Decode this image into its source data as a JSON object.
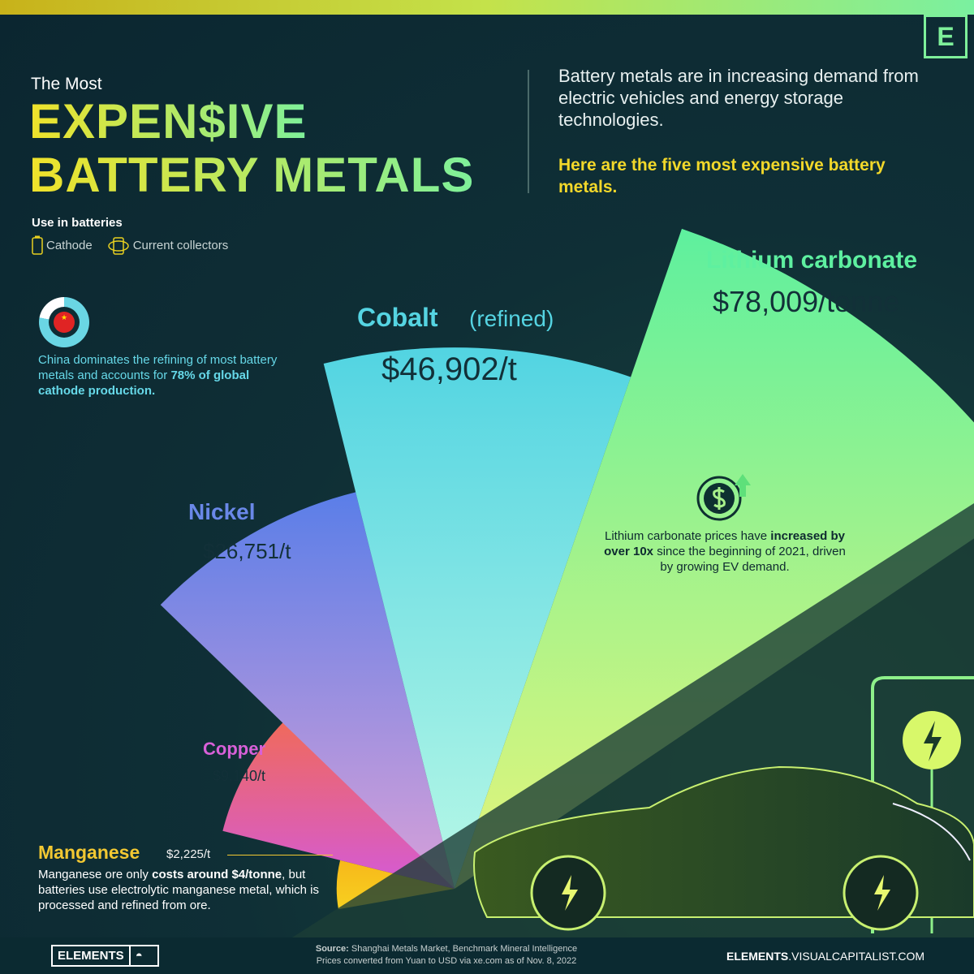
{
  "header": {
    "kicker": "The Most",
    "title_line1": "EXPEN$IVE",
    "title_line2": "BATTERY METALS",
    "logo": "E"
  },
  "intro": {
    "text": "Battery metals are in increasing demand from electric vehicles and energy storage technologies.",
    "highlight": "Here are the five most expensive battery metals."
  },
  "legend": {
    "title": "Use in batteries",
    "items": [
      {
        "label": "Cathode",
        "icon": "battery-icon"
      },
      {
        "label": "Current collectors",
        "icon": "battery-cycle-icon"
      }
    ]
  },
  "china": {
    "text": "China dominates the refining of most battery metals and accounts for",
    "bold": "78% of global cathode production.",
    "share_percent": 78
  },
  "lithium_note": {
    "pre": "Lithium carbonate prices have",
    "bold1": "increased by over 10x",
    "post": "since the beginning of 2021, driven by growing EV demand."
  },
  "manganese_note": {
    "title": "Manganese",
    "value": "$2,225/t",
    "pre": "Manganese ore only",
    "bold": "costs around $4/tonne",
    "post": ", but batteries use electrolytic manganese metal, which is processed and refined from ore."
  },
  "chart_data": {
    "type": "pie",
    "unit": "USD per tonne",
    "categories": [
      "Manganese",
      "Copper",
      "Nickel",
      "Cobalt (refined)",
      "Lithium carbonate"
    ],
    "values": [
      2225,
      9140,
      26751,
      46902,
      78009
    ],
    "labels": [
      "$2,225/t",
      "$9,140/t",
      "$26,751/t",
      "$46,902/t",
      "$78,009/tonne"
    ],
    "names": [
      "Manganese",
      "Copper",
      "Nickel",
      "Cobalt",
      "Lithium carbonate"
    ],
    "suffix": [
      "",
      "",
      "",
      "(refined)",
      ""
    ],
    "use": [
      "Current collectors",
      "Current collectors",
      "Cathode",
      "Cathode",
      "Cathode"
    ],
    "colors": [
      [
        "#f7b81a",
        "#f7d020"
      ],
      [
        "#f06a5a",
        "#d45ad8"
      ],
      [
        "#5a7ee8",
        "#d8a0d8"
      ],
      [
        "#52d4e2",
        "#b8f8e6"
      ],
      [
        "#5ef09e",
        "#e6f57a"
      ]
    ]
  },
  "footer": {
    "brand": "ELEMENTS",
    "source_label": "Source:",
    "source": "Shanghai Metals Market, Benchmark Mineral Intelligence",
    "note": "Prices converted from Yuan to USD via xe.com as of Nov. 8, 2022",
    "site_bold": "ELEMENTS",
    "site": ".VISUALCAPITALIST.COM"
  }
}
